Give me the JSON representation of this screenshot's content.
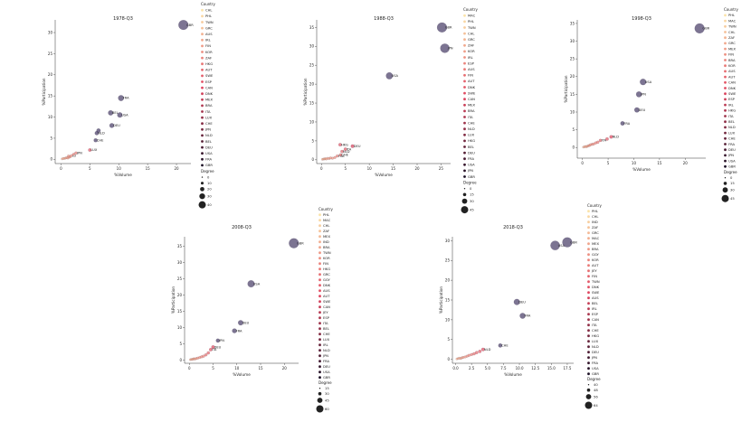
{
  "chart_data": [
    {
      "type": "scatter",
      "title": "1978-Q3",
      "xlabel": "%Volume",
      "ylabel": "%Participation",
      "xlim": [
        -1,
        22.5
      ],
      "ylim": [
        -1,
        33
      ],
      "xticks": [
        "0",
        "5",
        "10",
        "15",
        "20"
      ],
      "xtick_values": [
        0,
        5,
        10,
        15,
        20
      ],
      "yticks": [
        "0",
        "5",
        "10",
        "15",
        "20",
        "25",
        "30"
      ],
      "ytick_values": [
        0,
        5,
        10,
        15,
        20,
        25,
        30
      ],
      "points": [
        {
          "x": 0.2,
          "y": 0.1,
          "label": ""
        },
        {
          "x": 0.4,
          "y": 0.2,
          "label": ""
        },
        {
          "x": 0.6,
          "y": 0.2,
          "label": ""
        },
        {
          "x": 0.8,
          "y": 0.3,
          "label": ""
        },
        {
          "x": 1.0,
          "y": 0.4,
          "label": ""
        },
        {
          "x": 1.2,
          "y": 0.3,
          "label": ""
        },
        {
          "x": 1.4,
          "y": 0.5,
          "label": ""
        },
        {
          "x": 1.6,
          "y": 0.6,
          "label": ""
        },
        {
          "x": 1.3,
          "y": 0.8,
          "label": ""
        },
        {
          "x": 1.8,
          "y": 0.9,
          "label": "LU"
        },
        {
          "x": 2.2,
          "y": 1.2,
          "label": ""
        },
        {
          "x": 2.6,
          "y": 1.5,
          "label": "JPN"
        },
        {
          "x": 5.0,
          "y": 2.2,
          "label": "LUX"
        },
        {
          "x": 6.0,
          "y": 4.5,
          "label": "CHE"
        },
        {
          "x": 6.2,
          "y": 6.2,
          "label": "NLD"
        },
        {
          "x": 6.5,
          "y": 6.8,
          "label": ""
        },
        {
          "x": 8.8,
          "y": 8.0,
          "label": "DEU"
        },
        {
          "x": 8.6,
          "y": 11.0,
          "label": "BEL"
        },
        {
          "x": 10.2,
          "y": 10.5,
          "label": "USA"
        },
        {
          "x": 10.4,
          "y": 14.5,
          "label": "FRA"
        },
        {
          "x": 21.2,
          "y": 31.8,
          "label": "GBR"
        }
      ],
      "legend": {
        "title": "Country",
        "countries": [
          "CHL",
          "PHL",
          "TWN",
          "GRC",
          "AUS",
          "IRL",
          "FIN",
          "KOR",
          "ZAF",
          "HKG",
          "AUT",
          "SWE",
          "ESP",
          "CAN",
          "DNK",
          "MEX",
          "BRA",
          "ITA",
          "LUX",
          "CHE",
          "JPN",
          "NLD",
          "BEL",
          "DEU",
          "USA",
          "FRA",
          "GBR"
        ],
        "size_title": "Degree",
        "sizes": [
          "0",
          "10",
          "20",
          "30",
          "40"
        ]
      }
    },
    {
      "type": "scatter",
      "title": "1988-Q3",
      "xlabel": "%Volume",
      "ylabel": "%Participation",
      "xlim": [
        -1,
        27
      ],
      "ylim": [
        -1,
        37
      ],
      "xticks": [
        "0",
        "5",
        "10",
        "15",
        "20",
        "25"
      ],
      "xtick_values": [
        0,
        5,
        10,
        15,
        20,
        25
      ],
      "yticks": [
        "0",
        "5",
        "10",
        "15",
        "20",
        "25",
        "30",
        "35"
      ],
      "ytick_values": [
        0,
        5,
        10,
        15,
        20,
        25,
        30,
        35
      ],
      "points": [
        {
          "x": 0.2,
          "y": 0.1,
          "label": ""
        },
        {
          "x": 0.4,
          "y": 0.2,
          "label": ""
        },
        {
          "x": 0.6,
          "y": 0.2,
          "label": ""
        },
        {
          "x": 0.8,
          "y": 0.3,
          "label": ""
        },
        {
          "x": 1.0,
          "y": 0.2,
          "label": ""
        },
        {
          "x": 1.3,
          "y": 0.4,
          "label": ""
        },
        {
          "x": 1.6,
          "y": 0.3,
          "label": ""
        },
        {
          "x": 1.9,
          "y": 0.5,
          "label": ""
        },
        {
          "x": 2.3,
          "y": 0.4,
          "label": ""
        },
        {
          "x": 2.8,
          "y": 0.6,
          "label": ""
        },
        {
          "x": 3.3,
          "y": 1.0,
          "label": "FRA"
        },
        {
          "x": 4.0,
          "y": 1.3,
          "label": "CHE"
        },
        {
          "x": 4.3,
          "y": 2.2,
          "label": "NLD"
        },
        {
          "x": 5.0,
          "y": 2.8,
          "label": "ITA"
        },
        {
          "x": 3.9,
          "y": 4.0,
          "label": "HKG"
        },
        {
          "x": 6.5,
          "y": 3.6,
          "label": "DEU"
        },
        {
          "x": 14.2,
          "y": 22.2,
          "label": "USA"
        },
        {
          "x": 25.2,
          "y": 35.0,
          "label": "GBR"
        },
        {
          "x": 25.8,
          "y": 29.5,
          "label": "JPN"
        }
      ],
      "legend": {
        "title": "Country",
        "countries": [
          "MAC",
          "PHL",
          "TWN",
          "CHL",
          "GRC",
          "ZAF",
          "KOR",
          "IRL",
          "ESP",
          "AUS",
          "FIN",
          "AUT",
          "DNK",
          "SWE",
          "CAN",
          "MEX",
          "BRA",
          "ITA",
          "CHE",
          "NLD",
          "LUX",
          "HKG",
          "BEL",
          "DEU",
          "FRA",
          "USA",
          "JPN",
          "GBR"
        ],
        "size_title": "Degree",
        "sizes": [
          "0",
          "15",
          "30",
          "45"
        ]
      }
    },
    {
      "type": "scatter",
      "title": "1998-Q3",
      "xlabel": "%Volume",
      "ylabel": "%Participation",
      "xlim": [
        -1,
        24
      ],
      "ylim": [
        -3,
        36
      ],
      "xticks": [
        "0",
        "5",
        "10",
        "15",
        "20"
      ],
      "xtick_values": [
        0,
        5,
        10,
        15,
        20
      ],
      "yticks": [
        "0",
        "5",
        "10",
        "15",
        "20",
        "25",
        "30",
        "35"
      ],
      "ytick_values": [
        0,
        5,
        10,
        15,
        20,
        25,
        30,
        35
      ],
      "points": [
        {
          "x": 0.2,
          "y": 0.1,
          "label": ""
        },
        {
          "x": 0.4,
          "y": 0.2,
          "label": ""
        },
        {
          "x": 0.6,
          "y": 0.3,
          "label": ""
        },
        {
          "x": 0.8,
          "y": 0.2,
          "label": ""
        },
        {
          "x": 1.0,
          "y": 0.4,
          "label": ""
        },
        {
          "x": 1.2,
          "y": 0.5,
          "label": ""
        },
        {
          "x": 1.4,
          "y": 0.6,
          "label": ""
        },
        {
          "x": 1.6,
          "y": 0.8,
          "label": ""
        },
        {
          "x": 1.9,
          "y": 0.9,
          "label": ""
        },
        {
          "x": 2.2,
          "y": 1.0,
          "label": ""
        },
        {
          "x": 2.6,
          "y": 1.3,
          "label": ""
        },
        {
          "x": 3.0,
          "y": 1.5,
          "label": ""
        },
        {
          "x": 3.5,
          "y": 2.0,
          "label": "ITA"
        },
        {
          "x": 4.8,
          "y": 2.4,
          "label": ""
        },
        {
          "x": 5.6,
          "y": 3.0,
          "label": "NLD"
        },
        {
          "x": 7.8,
          "y": 6.8,
          "label": "FRA"
        },
        {
          "x": 10.6,
          "y": 10.6,
          "label": "DEU"
        },
        {
          "x": 11.0,
          "y": 15.0,
          "label": "JPN"
        },
        {
          "x": 11.8,
          "y": 18.5,
          "label": "USA"
        },
        {
          "x": 22.8,
          "y": 33.6,
          "label": "GBR"
        }
      ],
      "legend": {
        "title": "Country",
        "countries": [
          "PHL",
          "MAC",
          "TWN",
          "CHL",
          "ZAF",
          "GRC",
          "MEX",
          "FIN",
          "BRA",
          "KOR",
          "AUS",
          "AUT",
          "CAN",
          "DNK",
          "SWE",
          "ESP",
          "IRL",
          "HKG",
          "ITA",
          "BEL",
          "NLD",
          "LUX",
          "CHE",
          "FRA",
          "DEU",
          "JPN",
          "USA",
          "GBR"
        ],
        "size_title": "Degree",
        "sizes": [
          "0",
          "15",
          "30",
          "45"
        ]
      }
    },
    {
      "type": "scatter",
      "title": "2008-Q3",
      "xlabel": "%Volume",
      "ylabel": "%Participation",
      "xlim": [
        -1,
        23
      ],
      "ylim": [
        -1,
        38
      ],
      "xticks": [
        "0",
        "5",
        "10",
        "15",
        "20"
      ],
      "xtick_values": [
        0,
        5,
        10,
        15,
        20
      ],
      "yticks": [
        "0",
        "5",
        "10",
        "15",
        "20",
        "25",
        "30",
        "35"
      ],
      "ytick_values": [
        0,
        5,
        10,
        15,
        20,
        25,
        30,
        35
      ],
      "points": [
        {
          "x": 0.2,
          "y": 0.1,
          "label": ""
        },
        {
          "x": 0.4,
          "y": 0.2,
          "label": ""
        },
        {
          "x": 0.6,
          "y": 0.2,
          "label": ""
        },
        {
          "x": 0.8,
          "y": 0.3,
          "label": ""
        },
        {
          "x": 1.0,
          "y": 0.4,
          "label": ""
        },
        {
          "x": 1.2,
          "y": 0.3,
          "label": ""
        },
        {
          "x": 1.5,
          "y": 0.5,
          "label": ""
        },
        {
          "x": 1.8,
          "y": 0.6,
          "label": ""
        },
        {
          "x": 2.2,
          "y": 0.8,
          "label": ""
        },
        {
          "x": 2.6,
          "y": 1.0,
          "label": ""
        },
        {
          "x": 3.0,
          "y": 1.2,
          "label": ""
        },
        {
          "x": 3.5,
          "y": 1.6,
          "label": ""
        },
        {
          "x": 4.0,
          "y": 2.2,
          "label": ""
        },
        {
          "x": 4.5,
          "y": 3.2,
          "label": "ITA"
        },
        {
          "x": 5.0,
          "y": 4.0,
          "label": "DEU"
        },
        {
          "x": 6.0,
          "y": 6.0,
          "label": "JPN"
        },
        {
          "x": 9.5,
          "y": 9.0,
          "label": "FRA"
        },
        {
          "x": 10.8,
          "y": 11.5,
          "label": "DEU"
        },
        {
          "x": 13.0,
          "y": 23.5,
          "label": "USA"
        },
        {
          "x": 22.0,
          "y": 36.0,
          "label": "GBR"
        }
      ],
      "legend": {
        "title": "Country",
        "countries": [
          "PHL",
          "MAC",
          "CHL",
          "ZAF",
          "MEX",
          "IND",
          "BRA",
          "TWN",
          "KOR",
          "FIN",
          "HKG",
          "GRC",
          "GGY",
          "DNK",
          "AUS",
          "AUT",
          "SWE",
          "CAN",
          "JEY",
          "ESP",
          "ITA",
          "BEL",
          "CHE",
          "LUX",
          "IRL",
          "NLD",
          "JPN",
          "FRA",
          "DEU",
          "USA",
          "GBR"
        ],
        "size_title": "Degree",
        "sizes": [
          "15",
          "30",
          "45",
          "60"
        ]
      }
    },
    {
      "type": "scatter",
      "title": "2018-Q3",
      "xlabel": "%Volume",
      "ylabel": "%Participation",
      "xlim": [
        -0.5,
        18.5
      ],
      "ylim": [
        -1,
        31
      ],
      "xticks": [
        "0.0",
        "2.5",
        "5.0",
        "7.5",
        "10.0",
        "12.5",
        "15.0",
        "17.5"
      ],
      "xtick_values": [
        0,
        2.5,
        5,
        7.5,
        10,
        12.5,
        15,
        17.5
      ],
      "yticks": [
        "0",
        "5",
        "10",
        "15",
        "20",
        "25",
        "30"
      ],
      "ytick_values": [
        0,
        5,
        10,
        15,
        20,
        25,
        30
      ],
      "points": [
        {
          "x": 0.2,
          "y": 0.1,
          "label": ""
        },
        {
          "x": 0.4,
          "y": 0.2,
          "label": ""
        },
        {
          "x": 0.6,
          "y": 0.3,
          "label": ""
        },
        {
          "x": 0.8,
          "y": 0.2,
          "label": ""
        },
        {
          "x": 1.0,
          "y": 0.4,
          "label": ""
        },
        {
          "x": 1.2,
          "y": 0.5,
          "label": ""
        },
        {
          "x": 1.5,
          "y": 0.6,
          "label": ""
        },
        {
          "x": 1.8,
          "y": 0.8,
          "label": ""
        },
        {
          "x": 2.1,
          "y": 1.0,
          "label": ""
        },
        {
          "x": 2.5,
          "y": 1.2,
          "label": ""
        },
        {
          "x": 2.9,
          "y": 1.4,
          "label": ""
        },
        {
          "x": 3.3,
          "y": 1.7,
          "label": ""
        },
        {
          "x": 3.8,
          "y": 2.0,
          "label": ""
        },
        {
          "x": 4.3,
          "y": 2.5,
          "label": "NLD"
        },
        {
          "x": 7.0,
          "y": 3.5,
          "label": "CHE"
        },
        {
          "x": 9.6,
          "y": 14.5,
          "label": "DEU"
        },
        {
          "x": 10.5,
          "y": 11.0,
          "label": "FRA"
        },
        {
          "x": 15.6,
          "y": 28.8,
          "label": "USA"
        },
        {
          "x": 17.5,
          "y": 29.6,
          "label": "GBR"
        }
      ],
      "legend": {
        "title": "Country",
        "countries": [
          "PHL",
          "CHL",
          "IND",
          "ZAF",
          "GRC",
          "MAC",
          "MEX",
          "BRA",
          "GGY",
          "KOR",
          "AUT",
          "JEY",
          "FIN",
          "TWN",
          "DNK",
          "SWE",
          "AUS",
          "BEL",
          "IRL",
          "ESP",
          "CAN",
          "ITA",
          "CHE",
          "HKG",
          "LUX",
          "NLD",
          "DEU",
          "JPN",
          "FRA",
          "USA",
          "GBR"
        ],
        "size_title": "Degree",
        "sizes": [
          "40",
          "48",
          "56",
          "64"
        ]
      }
    }
  ],
  "colors": {
    "low": "#fbe3a8",
    "mid": "#e0455f",
    "high": "#1a0f24",
    "bubble": "#4a3f68"
  }
}
